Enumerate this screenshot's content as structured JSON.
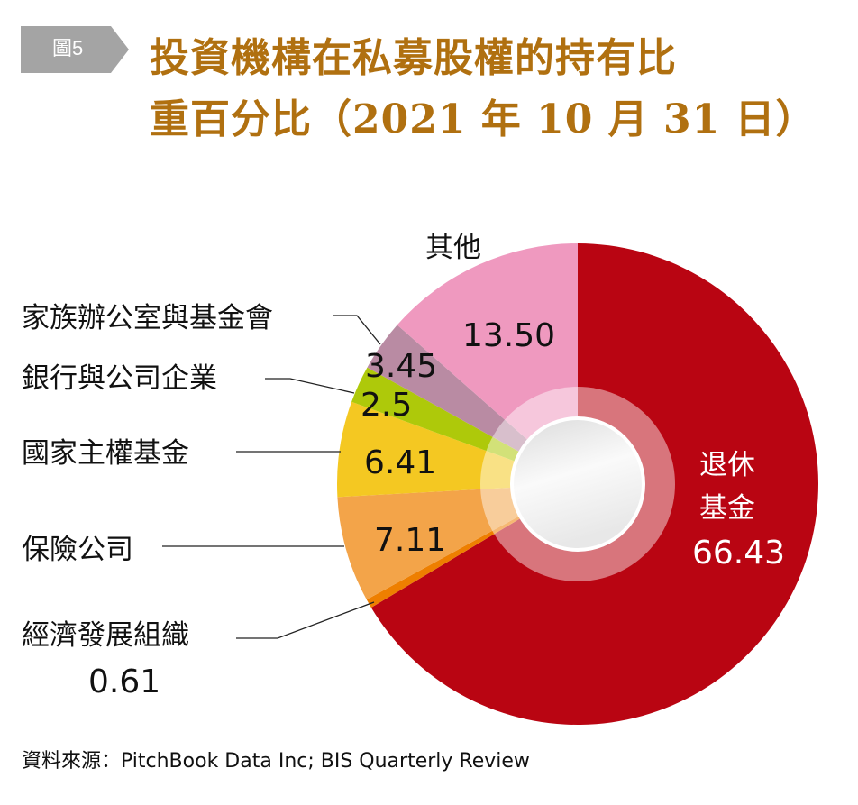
{
  "header": {
    "badge": "圖5",
    "title_line1": "投資機構在私募股權的持有比",
    "title_line2": "重百分比（2021 年 10 月 31 日）"
  },
  "chart_data": {
    "type": "pie",
    "title": "投資機構在私募股權的持有比重百分比（2021 年 10 月 31 日）",
    "unit": "%",
    "start": "12 o'clock, clockwise",
    "slices": [
      {
        "label": "退休基金",
        "value": 66.43,
        "value_text": "66.43",
        "color": "#b90512"
      },
      {
        "label": "經濟發展組織",
        "value": 0.61,
        "value_text": "0.61",
        "color": "#ee7f00"
      },
      {
        "label": "保險公司",
        "value": 7.11,
        "value_text": "7.11",
        "color": "#f3a449"
      },
      {
        "label": "國家主權基金",
        "value": 6.41,
        "value_text": "6.41",
        "color": "#f4c822"
      },
      {
        "label": "銀行與公司企業",
        "value": 2.5,
        "value_text": "2.5",
        "color": "#aec90a"
      },
      {
        "label": "家族辦公室與基金會",
        "value": 3.45,
        "value_text": "3.45",
        "color": "#b98ba3"
      },
      {
        "label": "其他",
        "value": 13.5,
        "value_text": "13.50",
        "color": "#ef99bf"
      }
    ]
  },
  "footer": {
    "source": "資料來源：PitchBook Data Inc; BIS Quarterly Review"
  }
}
